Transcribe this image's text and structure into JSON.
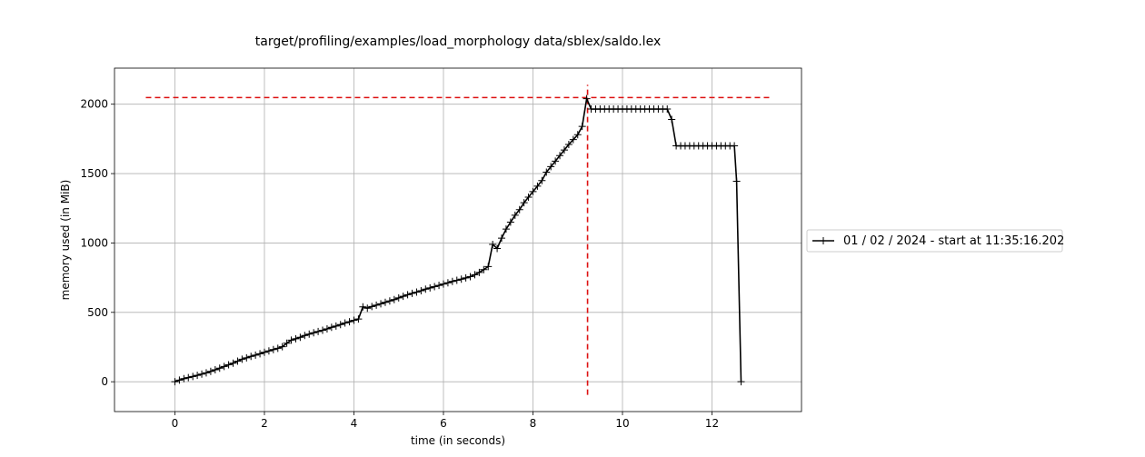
{
  "chart_data": {
    "type": "line",
    "title": "target/profiling/examples/load_morphology data/sblex/saldo.lex",
    "xlabel": "time (in seconds)",
    "ylabel": "memory used (in MiB)",
    "xlim": [
      -1.35,
      14.0
    ],
    "ylim": [
      -215,
      2260
    ],
    "xticks": [
      0,
      2,
      4,
      6,
      8,
      10,
      12
    ],
    "yticks": [
      0,
      500,
      1000,
      1500,
      2000
    ],
    "grid": true,
    "legend_position": "outside-right",
    "series": [
      {
        "name": "01 / 02 / 2024 - start at 11:35:16.202",
        "color": "#000000",
        "marker": "+",
        "x": [
          0,
          0.1,
          0.2,
          0.3,
          0.4,
          0.5,
          0.6,
          0.7,
          0.8,
          0.9,
          1.0,
          1.1,
          1.2,
          1.3,
          1.4,
          1.5,
          1.6,
          1.7,
          1.8,
          1.9,
          2.0,
          2.1,
          2.2,
          2.3,
          2.4,
          2.5,
          2.6,
          2.7,
          2.8,
          2.9,
          3.0,
          3.1,
          3.2,
          3.3,
          3.4,
          3.5,
          3.6,
          3.7,
          3.8,
          3.9,
          4.0,
          4.1,
          4.2,
          4.3,
          4.4,
          4.5,
          4.6,
          4.7,
          4.8,
          4.9,
          5.0,
          5.1,
          5.2,
          5.3,
          5.4,
          5.5,
          5.6,
          5.7,
          5.8,
          5.9,
          6.0,
          6.1,
          6.2,
          6.3,
          6.4,
          6.5,
          6.6,
          6.7,
          6.8,
          6.9,
          7.0,
          7.1,
          7.2,
          7.3,
          7.4,
          7.5,
          7.6,
          7.7,
          7.8,
          7.9,
          8.0,
          8.1,
          8.2,
          8.3,
          8.4,
          8.5,
          8.6,
          8.7,
          8.8,
          8.9,
          9.0,
          9.1,
          9.2,
          9.3,
          9.4,
          9.5,
          9.6,
          9.7,
          9.8,
          9.9,
          10.0,
          10.1,
          10.2,
          10.3,
          10.4,
          10.5,
          10.6,
          10.7,
          10.8,
          10.9,
          11.0,
          11.1,
          11.2,
          11.3,
          11.4,
          11.5,
          11.6,
          11.7,
          11.8,
          11.9,
          12.0,
          12.1,
          12.2,
          12.3,
          12.4,
          12.5,
          12.55,
          12.65
        ],
        "y": [
          0,
          12,
          22,
          30,
          38,
          46,
          55,
          64,
          75,
          86,
          98,
          110,
          122,
          134,
          148,
          162,
          172,
          183,
          192,
          202,
          212,
          222,
          232,
          241,
          252,
          278,
          300,
          310,
          320,
          333,
          343,
          353,
          362,
          371,
          381,
          392,
          401,
          412,
          423,
          432,
          443,
          452,
          540,
          530,
          542,
          552,
          562,
          572,
          582,
          592,
          604,
          616,
          627,
          637,
          646,
          656,
          667,
          676,
          685,
          694,
          704,
          713,
          723,
          731,
          739,
          748,
          757,
          771,
          788,
          808,
          830,
          990,
          960,
          1035,
          1100,
          1150,
          1200,
          1240,
          1290,
          1330,
          1370,
          1410,
          1450,
          1510,
          1550,
          1590,
          1630,
          1670,
          1710,
          1745,
          1780,
          1840,
          2040,
          1965,
          1965,
          1965,
          1965,
          1965,
          1965,
          1965,
          1965,
          1965,
          1965,
          1965,
          1965,
          1965,
          1965,
          1965,
          1965,
          1965,
          1965,
          1890,
          1700,
          1700,
          1700,
          1700,
          1700,
          1700,
          1700,
          1700,
          1700,
          1700,
          1700,
          1700,
          1700,
          1700,
          1445,
          0
        ]
      }
    ],
    "reference_lines": [
      {
        "orientation": "horizontal",
        "value": 2048,
        "from": -0.65,
        "to": 13.3,
        "color": "#dd1111",
        "style": "dashed"
      },
      {
        "orientation": "vertical",
        "value": 9.22,
        "from": -95,
        "to": 2140,
        "color": "#dd1111",
        "style": "dashed"
      }
    ]
  }
}
